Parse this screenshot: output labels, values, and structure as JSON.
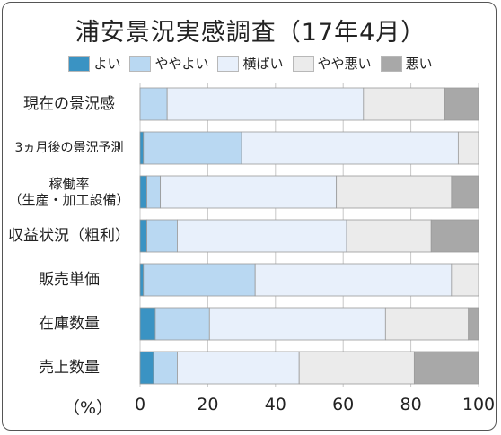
{
  "chart_data": {
    "type": "bar",
    "stacked": true,
    "orientation": "horizontal",
    "title": "浦安景況実感調査（17年4月）",
    "xlabel": "（%）",
    "xlim": [
      0,
      100
    ],
    "xticks": [
      "0",
      "20",
      "40",
      "60",
      "80",
      "100"
    ],
    "grid": true,
    "legend_position": "top",
    "categories": [
      [
        "現在の景況感"
      ],
      [
        "3ヵ月後の景況予測"
      ],
      [
        "稼働率",
        "（生産・加工設備）"
      ],
      [
        "収益状況（粗利）"
      ],
      [
        "販売単価"
      ],
      [
        "在庫数量"
      ],
      [
        "売上数量"
      ]
    ],
    "series": [
      {
        "name": "よい",
        "color": "#3a93c3",
        "values": [
          0,
          1,
          2,
          2,
          1,
          4.5,
          4
        ]
      },
      {
        "name": "ややよい",
        "color": "#b9d8f2",
        "values": [
          8,
          29,
          4,
          9,
          33,
          16,
          7
        ]
      },
      {
        "name": "横ばい",
        "color": "#e8f0fb",
        "values": [
          58,
          64,
          52,
          50,
          58,
          52,
          36
        ]
      },
      {
        "name": "やや悪い",
        "color": "#ebebeb",
        "values": [
          24,
          6,
          34,
          25,
          8,
          24.5,
          34
        ]
      },
      {
        "name": "悪い",
        "color": "#a8a8a8",
        "values": [
          10,
          0,
          8,
          14,
          0,
          3,
          19
        ]
      }
    ]
  }
}
